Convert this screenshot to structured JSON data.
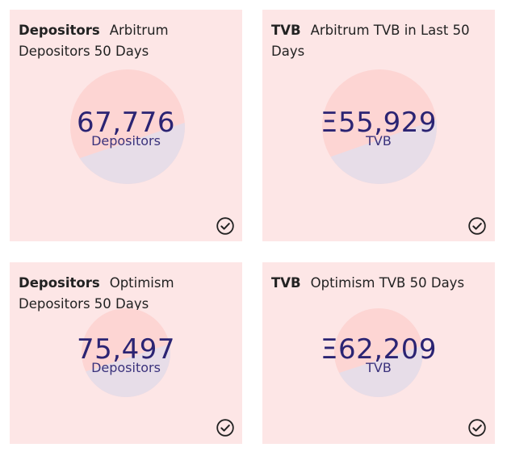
{
  "cards": [
    {
      "tag": "Depositors",
      "title": "Arbitrum Depositors 50 Days",
      "value": "67,776",
      "unit": "Depositors",
      "share": 0.42
    },
    {
      "tag": "TVB",
      "title": "Arbitrum TVB in Last 50 Days",
      "value": "Ξ55,929",
      "unit": "TVB",
      "share": 0.38
    },
    {
      "tag": "Depositors",
      "title": "Optimism Depositors 50 Days",
      "value": "75,497",
      "unit": "Depositors",
      "share": 0.45
    },
    {
      "tag": "TVB",
      "title": "Optimism TVB 50 Days",
      "value": "Ξ62,209",
      "unit": "TVB",
      "share": 0.4
    }
  ],
  "colors": {
    "card_bg": "#fde6e6",
    "circle_top": "#fdd5d3",
    "circle_bottom": "#e7dde8",
    "metric_text": "#2b2473",
    "check_icon": "#222222"
  },
  "icons": {
    "check": "check-circle-icon"
  }
}
